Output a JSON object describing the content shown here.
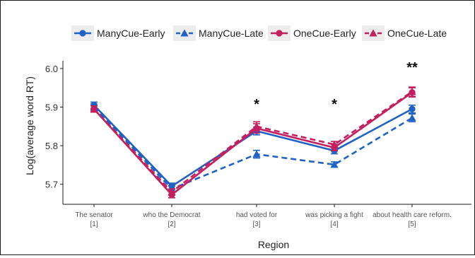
{
  "chart_data": {
    "type": "line",
    "title": "",
    "xlabel": "Region",
    "ylabel": "Log(average word RT)",
    "ylim": [
      5.65,
      6.02
    ],
    "yticks": [
      5.7,
      5.8,
      5.9,
      6.0
    ],
    "ytick_labels": [
      "5.7",
      "5.8",
      "5.9",
      "6.0"
    ],
    "grid": false,
    "legend_position": "top",
    "categories": [
      {
        "text": "The senator",
        "index": "[1]"
      },
      {
        "text": "who the Democrat",
        "index": "[2]"
      },
      {
        "text": "had voted for",
        "index": "[3]"
      },
      {
        "text": "was picking a fight",
        "index": "[4]"
      },
      {
        "text": "about health care reform.",
        "index": "[5]"
      }
    ],
    "series": [
      {
        "name": "ManyCue-Early",
        "color": "#1f62c4",
        "marker": "circle",
        "dash": false,
        "values": [
          5.905,
          5.695,
          5.838,
          5.787,
          5.895
        ],
        "err": [
          0.008,
          0.008,
          0.01,
          0.008,
          0.01
        ]
      },
      {
        "name": "ManyCue-Late",
        "color": "#1f62c4",
        "marker": "triangle",
        "dash": true,
        "values": [
          5.9,
          5.688,
          5.778,
          5.751,
          5.872
        ],
        "err": [
          0.008,
          0.008,
          0.01,
          0.007,
          0.01
        ]
      },
      {
        "name": "OneCue-Early",
        "color": "#c41f5f",
        "marker": "circle",
        "dash": false,
        "values": [
          5.895,
          5.673,
          5.845,
          5.795,
          5.938
        ],
        "err": [
          0.008,
          0.008,
          0.012,
          0.008,
          0.012
        ]
      },
      {
        "name": "OneCue-Late",
        "color": "#c41f5f",
        "marker": "triangle",
        "dash": true,
        "values": [
          5.895,
          5.68,
          5.85,
          5.803,
          5.94
        ],
        "err": [
          0.008,
          0.008,
          0.012,
          0.008,
          0.012
        ]
      }
    ],
    "annotations": [
      {
        "category": 3,
        "y": 5.91,
        "text": "*"
      },
      {
        "category": 4,
        "y": 5.91,
        "text": "*"
      },
      {
        "category": 5,
        "y": 6.005,
        "text": "**"
      }
    ]
  }
}
